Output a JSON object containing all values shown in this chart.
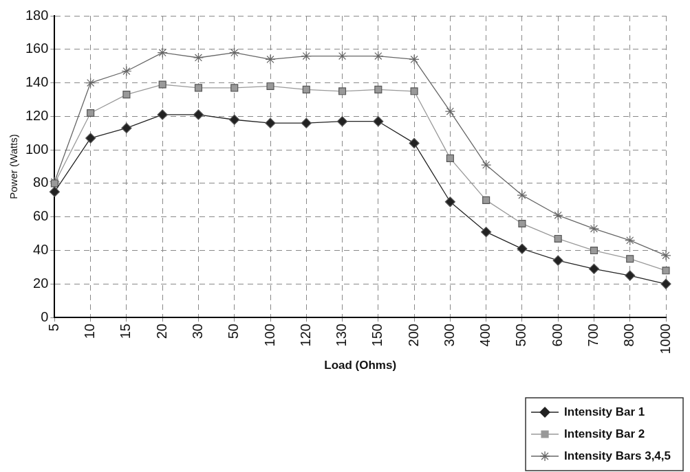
{
  "chart_data": {
    "type": "line",
    "xlabel": "Load (Ohms)",
    "ylabel": "Power (Watts)",
    "categories": [
      "5",
      "10",
      "15",
      "20",
      "30",
      "50",
      "100",
      "120",
      "130",
      "150",
      "200",
      "300",
      "400",
      "500",
      "600",
      "700",
      "800",
      "1000"
    ],
    "ylim": [
      0,
      180
    ],
    "yticks": [
      0,
      20,
      40,
      60,
      80,
      100,
      120,
      140,
      160,
      180
    ],
    "grid": true,
    "legend": "bottom right",
    "line_style": "solid",
    "series": [
      {
        "name": "Intensity Bar 1",
        "color": "#222222",
        "marker": "diamond",
        "values": [
          75,
          107,
          113,
          121,
          121,
          118,
          116,
          116,
          117,
          117,
          104,
          69,
          51,
          41,
          34,
          29,
          25,
          20
        ]
      },
      {
        "name": "Intensity Bar 2",
        "color": "#999999",
        "marker": "square",
        "values": [
          80,
          122,
          133,
          139,
          137,
          137,
          138,
          136,
          135,
          136,
          135,
          95,
          70,
          56,
          47,
          40,
          35,
          28
        ]
      },
      {
        "name": "Intensity Bars 3,4,5",
        "color": "#666666",
        "marker": "cross",
        "values": [
          81,
          140,
          147,
          158,
          155,
          158,
          154,
          156,
          156,
          156,
          154,
          123,
          91,
          73,
          61,
          53,
          46,
          37
        ]
      }
    ]
  }
}
